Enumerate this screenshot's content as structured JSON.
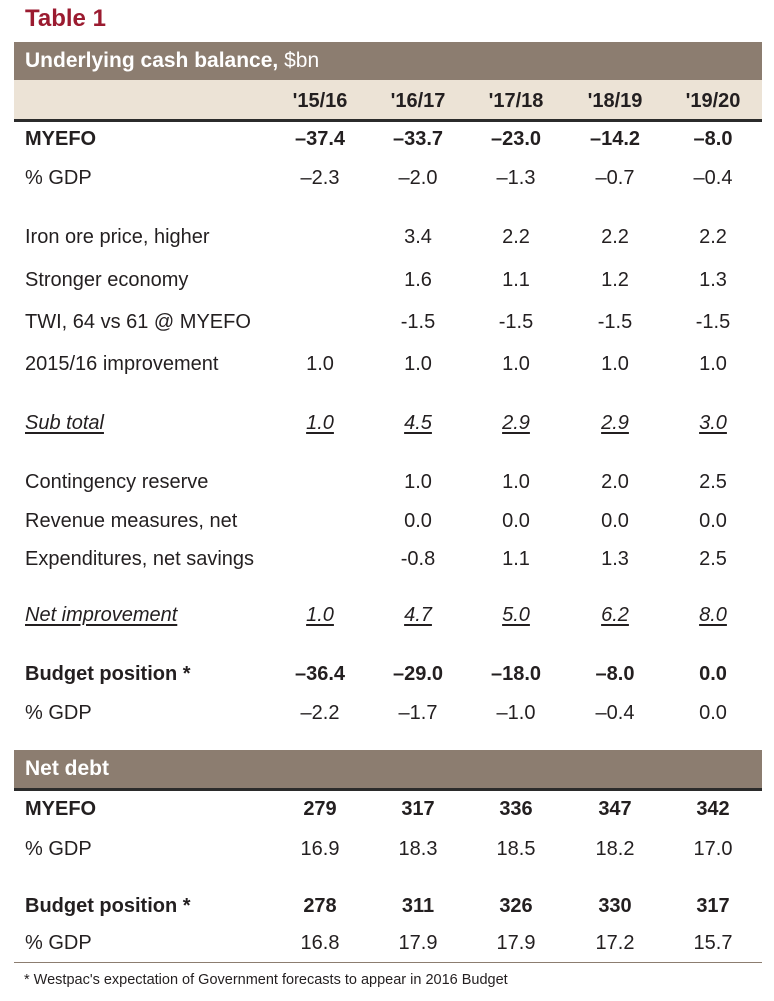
{
  "title": "Table 1",
  "cash_section": {
    "title_bold": "Underlying cash balance,",
    "title_unit": " $bn"
  },
  "columns": [
    "'15/16",
    "'16/17",
    "'17/18",
    "'18/19",
    "'19/20"
  ],
  "cash_rows": [
    {
      "label": "MYEFO",
      "values": [
        "–37.4",
        "–33.7",
        "–23.0",
        "–14.2",
        "–8.0"
      ]
    },
    {
      "label": "% GDP",
      "values": [
        "–2.3",
        "–2.0",
        "–1.3",
        "–0.7",
        "–0.4"
      ]
    },
    {
      "label": "Iron ore price, higher",
      "values": [
        "",
        "3.4",
        "2.2",
        "2.2",
        "2.2"
      ]
    },
    {
      "label": "Stronger economy",
      "values": [
        "",
        "1.6",
        "1.1",
        "1.2",
        "1.3"
      ]
    },
    {
      "label": "TWI, 64 vs 61 @ MYEFO",
      "values": [
        "",
        "-1.5",
        "-1.5",
        "-1.5",
        "-1.5"
      ]
    },
    {
      "label": "2015/16 improvement",
      "values": [
        "1.0",
        "1.0",
        "1.0",
        "1.0",
        "1.0"
      ]
    },
    {
      "label": "Sub total",
      "values": [
        "1.0",
        "4.5",
        "2.9",
        "2.9",
        "3.0"
      ]
    },
    {
      "label": "Contingency reserve",
      "values": [
        "",
        "1.0",
        "1.0",
        "2.0",
        "2.5"
      ]
    },
    {
      "label": "Revenue measures, net",
      "values": [
        "",
        "0.0",
        "0.0",
        "0.0",
        "0.0"
      ]
    },
    {
      "label": "Expenditures, net savings",
      "values": [
        "",
        "-0.8",
        "1.1",
        "1.3",
        "2.5"
      ]
    },
    {
      "label": "Net improvement",
      "values": [
        "1.0",
        "4.7",
        "5.0",
        "6.2",
        "8.0"
      ]
    },
    {
      "label": "Budget position *",
      "values": [
        "–36.4",
        "–29.0",
        "–18.0",
        "–8.0",
        "0.0"
      ]
    },
    {
      "label": "% GDP",
      "values": [
        "–2.2",
        "–1.7",
        "–1.0",
        "–0.4",
        "0.0"
      ]
    }
  ],
  "debt_section": {
    "title": "Net debt"
  },
  "debt_rows": [
    {
      "label": "MYEFO",
      "values": [
        "279",
        "317",
        "336",
        "347",
        "342"
      ]
    },
    {
      "label": "% GDP",
      "values": [
        "16.9",
        "18.3",
        "18.5",
        "18.2",
        "17.0"
      ]
    },
    {
      "label": "Budget position *",
      "values": [
        "278",
        "311",
        "326",
        "330",
        "317"
      ]
    },
    {
      "label": "% GDP",
      "values": [
        "16.8",
        "17.9",
        "17.9",
        "17.2",
        "15.7"
      ]
    }
  ],
  "footnote": "* Westpac's expectation of Government forecasts to appear in 2016 Budget",
  "colors": {
    "title": "#9b1b30",
    "header_bg": "#8c7d70",
    "band_bg": "#ece3d6"
  }
}
